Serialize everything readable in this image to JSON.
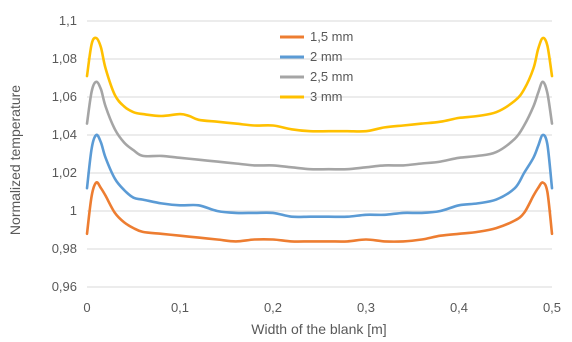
{
  "chart_data": {
    "type": "line",
    "title": "",
    "xlabel": "Width of the blank [m]",
    "ylabel": "Normalized temperature",
    "xlim": [
      0,
      0.5
    ],
    "ylim": [
      0.96,
      1.1
    ],
    "x_ticks": [
      0,
      0.1,
      0.2,
      0.3,
      0.4,
      0.5
    ],
    "x_tick_labels": [
      "0",
      "0,1",
      "0,2",
      "0,3",
      "0,4",
      "0,5"
    ],
    "y_ticks": [
      0.96,
      0.98,
      1.0,
      1.02,
      1.04,
      1.06,
      1.08,
      1.1
    ],
    "y_tick_labels": [
      "0,96",
      "0,98",
      "1",
      "1,02",
      "1,04",
      "1,06",
      "1,08",
      "1,1"
    ],
    "grid": "horizontal",
    "legend_position": "top-center",
    "series": [
      {
        "name": "1,5 mm",
        "color": "#ed7d31",
        "x": [
          0,
          0.005,
          0.01,
          0.015,
          0.02,
          0.03,
          0.04,
          0.05,
          0.06,
          0.08,
          0.1,
          0.12,
          0.14,
          0.16,
          0.18,
          0.2,
          0.22,
          0.24,
          0.26,
          0.28,
          0.3,
          0.32,
          0.34,
          0.36,
          0.38,
          0.4,
          0.42,
          0.44,
          0.46,
          0.47,
          0.48,
          0.485,
          0.49,
          0.495,
          0.5
        ],
        "y": [
          0.988,
          1.008,
          1.015,
          1.012,
          1.008,
          0.999,
          0.994,
          0.991,
          0.989,
          0.988,
          0.987,
          0.986,
          0.985,
          0.984,
          0.985,
          0.985,
          0.984,
          0.984,
          0.984,
          0.984,
          0.985,
          0.984,
          0.984,
          0.985,
          0.987,
          0.988,
          0.989,
          0.991,
          0.995,
          0.999,
          1.008,
          1.012,
          1.015,
          1.01,
          0.988
        ]
      },
      {
        "name": "2 mm",
        "color": "#5b9bd5",
        "x": [
          0,
          0.005,
          0.01,
          0.015,
          0.02,
          0.03,
          0.04,
          0.05,
          0.06,
          0.08,
          0.1,
          0.12,
          0.14,
          0.16,
          0.18,
          0.2,
          0.22,
          0.24,
          0.26,
          0.28,
          0.3,
          0.32,
          0.34,
          0.36,
          0.38,
          0.4,
          0.42,
          0.44,
          0.46,
          0.47,
          0.48,
          0.485,
          0.49,
          0.495,
          0.5
        ],
        "y": [
          1.012,
          1.033,
          1.04,
          1.036,
          1.028,
          1.017,
          1.011,
          1.007,
          1.006,
          1.004,
          1.003,
          1.003,
          1.0,
          0.999,
          0.999,
          0.999,
          0.997,
          0.997,
          0.997,
          0.997,
          0.998,
          0.998,
          0.999,
          0.999,
          1.0,
          1.003,
          1.004,
          1.006,
          1.012,
          1.02,
          1.028,
          1.034,
          1.04,
          1.035,
          1.012
        ]
      },
      {
        "name": "2,5 mm",
        "color": "#a5a5a5",
        "x": [
          0,
          0.005,
          0.01,
          0.015,
          0.02,
          0.03,
          0.04,
          0.05,
          0.06,
          0.08,
          0.1,
          0.12,
          0.14,
          0.16,
          0.18,
          0.2,
          0.22,
          0.24,
          0.26,
          0.28,
          0.3,
          0.32,
          0.34,
          0.36,
          0.38,
          0.4,
          0.42,
          0.44,
          0.46,
          0.47,
          0.48,
          0.485,
          0.49,
          0.495,
          0.5
        ],
        "y": [
          1.046,
          1.063,
          1.068,
          1.064,
          1.055,
          1.043,
          1.036,
          1.032,
          1.029,
          1.029,
          1.028,
          1.027,
          1.026,
          1.025,
          1.024,
          1.024,
          1.023,
          1.022,
          1.022,
          1.022,
          1.023,
          1.024,
          1.024,
          1.025,
          1.026,
          1.028,
          1.029,
          1.031,
          1.038,
          1.045,
          1.055,
          1.062,
          1.068,
          1.062,
          1.046
        ]
      },
      {
        "name": "3 mm",
        "color": "#ffc000",
        "x": [
          0,
          0.005,
          0.01,
          0.015,
          0.02,
          0.03,
          0.04,
          0.05,
          0.06,
          0.08,
          0.1,
          0.11,
          0.12,
          0.14,
          0.16,
          0.18,
          0.2,
          0.22,
          0.24,
          0.26,
          0.28,
          0.3,
          0.32,
          0.34,
          0.36,
          0.38,
          0.4,
          0.42,
          0.44,
          0.46,
          0.47,
          0.48,
          0.485,
          0.49,
          0.495,
          0.5
        ],
        "y": [
          1.071,
          1.088,
          1.091,
          1.086,
          1.075,
          1.061,
          1.055,
          1.052,
          1.051,
          1.05,
          1.051,
          1.05,
          1.048,
          1.047,
          1.046,
          1.045,
          1.045,
          1.043,
          1.042,
          1.042,
          1.042,
          1.042,
          1.044,
          1.045,
          1.046,
          1.047,
          1.049,
          1.05,
          1.052,
          1.058,
          1.064,
          1.075,
          1.085,
          1.091,
          1.087,
          1.071
        ]
      }
    ]
  }
}
